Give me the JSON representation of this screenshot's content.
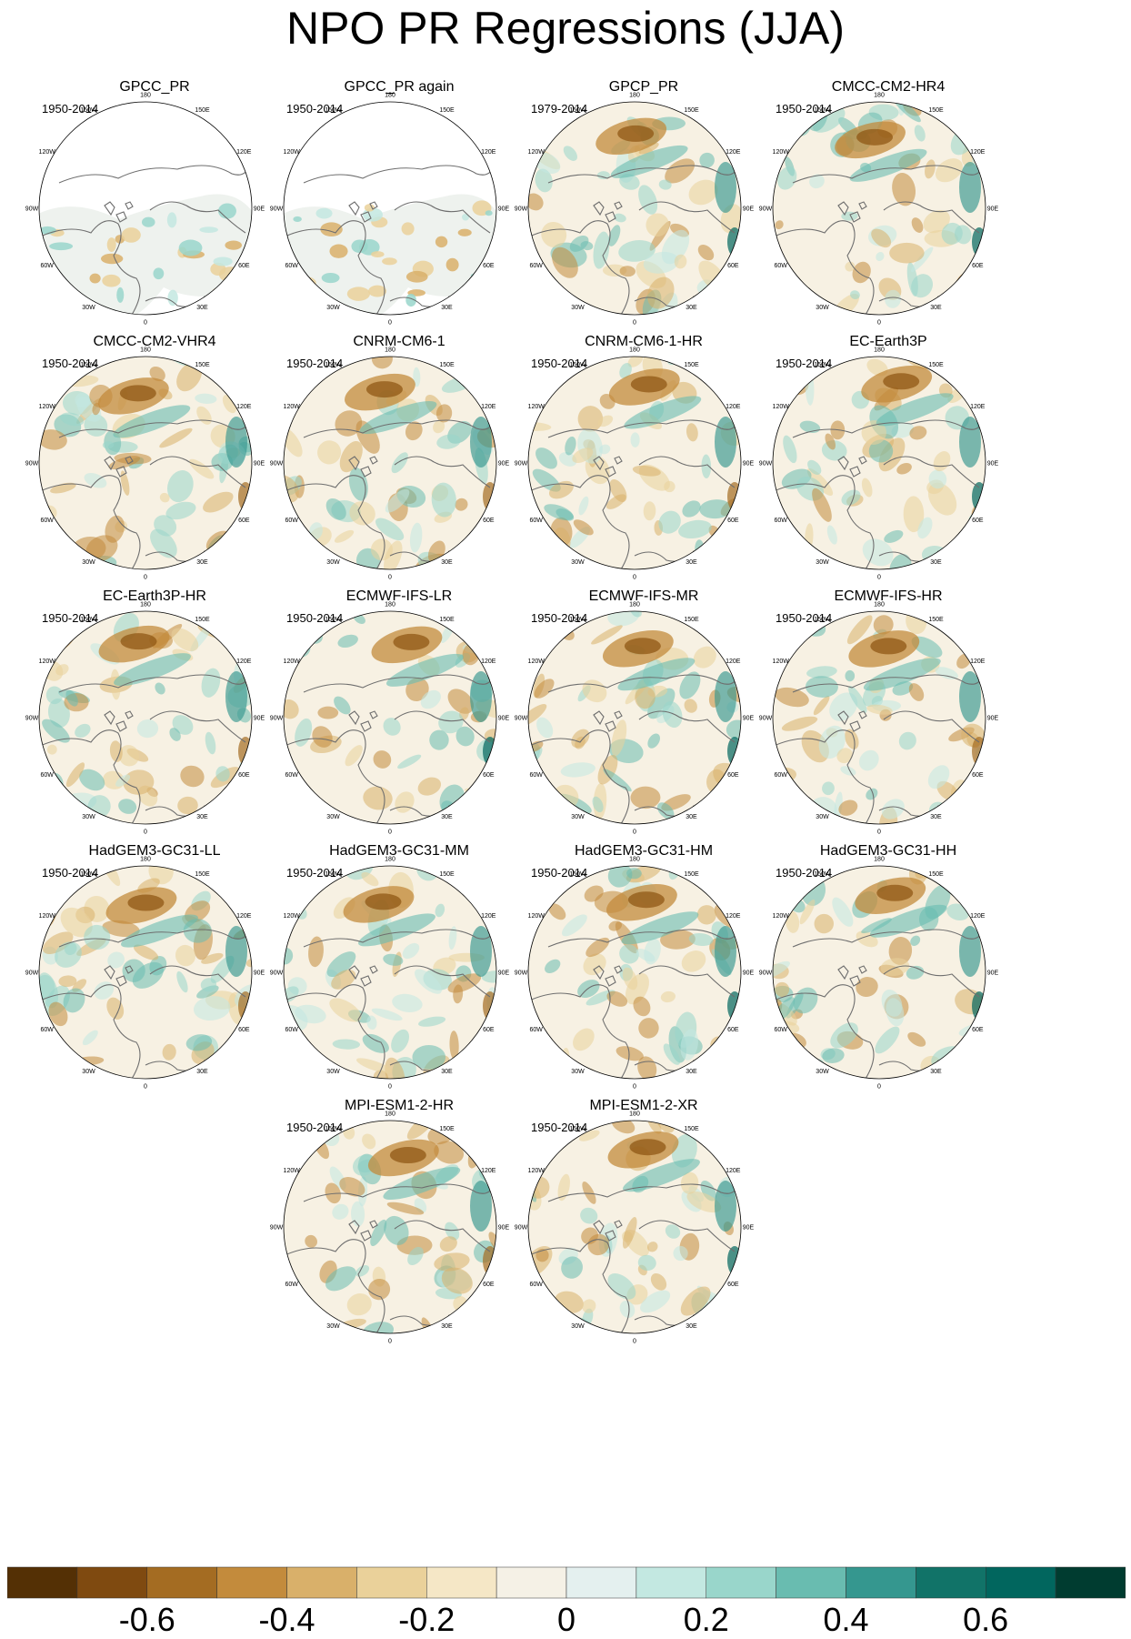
{
  "title": "NPO PR Regressions (JJA)",
  "lon_labels": [
    "180",
    "150E",
    "120E",
    "90E",
    "60E",
    "30E",
    "0",
    "30W",
    "60W",
    "90W",
    "120W",
    "150W"
  ],
  "panels": [
    {
      "title": "GPCC_PR",
      "period": "1950-2014",
      "pattern": "land",
      "row": 0,
      "col": 0
    },
    {
      "title": "GPCC_PR again",
      "period": "1950-2014",
      "pattern": "land",
      "row": 0,
      "col": 1
    },
    {
      "title": "GPCP_PR",
      "period": "1979-2014",
      "pattern": "full",
      "row": 0,
      "col": 2
    },
    {
      "title": "CMCC-CM2-HR4",
      "period": "1950-2014",
      "pattern": "full",
      "row": 0,
      "col": 3
    },
    {
      "title": "CMCC-CM2-VHR4",
      "period": "1950-2014",
      "pattern": "full",
      "row": 1,
      "col": 0
    },
    {
      "title": "CNRM-CM6-1",
      "period": "1950-2014",
      "pattern": "full",
      "row": 1,
      "col": 1
    },
    {
      "title": "CNRM-CM6-1-HR",
      "period": "1950-2014",
      "pattern": "full",
      "row": 1,
      "col": 2
    },
    {
      "title": "EC-Earth3P",
      "period": "1950-2014",
      "pattern": "full",
      "row": 1,
      "col": 3
    },
    {
      "title": "EC-Earth3P-HR",
      "period": "1950-2014",
      "pattern": "full",
      "row": 2,
      "col": 0
    },
    {
      "title": "ECMWF-IFS-LR",
      "period": "1950-2014",
      "pattern": "full",
      "row": 2,
      "col": 1
    },
    {
      "title": "ECMWF-IFS-MR",
      "period": "1950-2014",
      "pattern": "full",
      "row": 2,
      "col": 2
    },
    {
      "title": "ECMWF-IFS-HR",
      "period": "1950-2014",
      "pattern": "full",
      "row": 2,
      "col": 3
    },
    {
      "title": "HadGEM3-GC31-LL",
      "period": "1950-2014",
      "pattern": "full",
      "row": 3,
      "col": 0
    },
    {
      "title": "HadGEM3-GC31-MM",
      "period": "1950-2014",
      "pattern": "full",
      "row": 3,
      "col": 1
    },
    {
      "title": "HadGEM3-GC31-HM",
      "period": "1950-2014",
      "pattern": "full",
      "row": 3,
      "col": 2
    },
    {
      "title": "HadGEM3-GC31-HH",
      "period": "1950-2014",
      "pattern": "full",
      "row": 3,
      "col": 3
    },
    {
      "title": "MPI-ESM1-2-HR",
      "period": "1950-2014",
      "pattern": "full",
      "row": 4,
      "col": 1
    },
    {
      "title": "MPI-ESM1-2-XR",
      "period": "1950-2014",
      "pattern": "full",
      "row": 4,
      "col": 2
    }
  ],
  "colorbar": {
    "colors": [
      "#543005",
      "#7f4a10",
      "#a46c22",
      "#c38b3c",
      "#d9b06a",
      "#ead19a",
      "#f5e7c6",
      "#f5f1e6",
      "#e4f0ef",
      "#c3e8e1",
      "#99d6cb",
      "#69bcb0",
      "#35978f",
      "#117368",
      "#01665e",
      "#003c30"
    ],
    "tick_labels": [
      "-0.6",
      "-0.4",
      "-0.2",
      "0",
      "0.2",
      "0.4",
      "0.6"
    ],
    "tick_values": [
      -0.6,
      -0.4,
      -0.2,
      0,
      0.2,
      0.4,
      0.6
    ],
    "min": -0.8,
    "max": 0.8
  }
}
